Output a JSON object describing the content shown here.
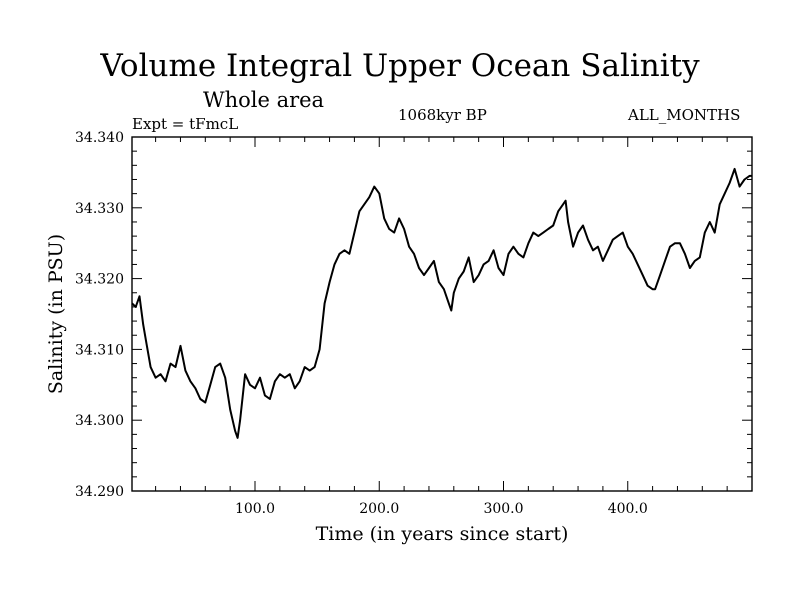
{
  "header": {
    "title": "Volume Integral Upper Ocean Salinity",
    "subtitle": "Whole area",
    "experiment": "Expt = tFmcL",
    "era": "1068kyr BP",
    "months": "ALL_MONTHS"
  },
  "chart_data": {
    "type": "line",
    "title": "Volume Integral Upper Ocean Salinity",
    "xlabel": "Time (in years since start)",
    "ylabel": "Salinity (in PSU)",
    "xlim": [
      1,
      500
    ],
    "ylim": [
      34.29,
      34.34
    ],
    "x_ticks": [
      100,
      200,
      300,
      400
    ],
    "x_tick_labels": [
      "100.0",
      "200.0",
      "300.0",
      "400.0"
    ],
    "y_ticks": [
      34.29,
      34.3,
      34.31,
      34.32,
      34.33,
      34.34
    ],
    "y_tick_labels": [
      "34.290",
      "34.300",
      "34.310",
      "34.320",
      "34.330",
      "34.340"
    ],
    "grid": false,
    "series": [
      {
        "name": "Salinity",
        "x": [
          1,
          4,
          7,
          10,
          13,
          16,
          20,
          24,
          28,
          32,
          36,
          40,
          44,
          48,
          52,
          56,
          60,
          64,
          68,
          72,
          76,
          80,
          84,
          86,
          88,
          92,
          96,
          100,
          104,
          108,
          112,
          116,
          120,
          124,
          128,
          132,
          136,
          140,
          144,
          148,
          152,
          156,
          160,
          164,
          168,
          172,
          176,
          180,
          184,
          188,
          192,
          196,
          198,
          200,
          204,
          208,
          212,
          216,
          220,
          224,
          228,
          232,
          236,
          240,
          244,
          248,
          252,
          256,
          258,
          260,
          264,
          268,
          272,
          276,
          280,
          284,
          288,
          292,
          296,
          300,
          304,
          308,
          312,
          316,
          320,
          324,
          328,
          332,
          336,
          340,
          344,
          348,
          350,
          352,
          356,
          360,
          364,
          368,
          372,
          376,
          380,
          384,
          388,
          392,
          396,
          400,
          404,
          408,
          412,
          416,
          420,
          422,
          426,
          430,
          434,
          438,
          442,
          446,
          450,
          454,
          458,
          462,
          466,
          470,
          474,
          478,
          482,
          486,
          490,
          494,
          498,
          500
        ],
        "values": [
          34.3165,
          34.316,
          34.3175,
          34.3135,
          34.3105,
          34.3075,
          34.306,
          34.3065,
          34.3055,
          34.308,
          34.3075,
          34.3105,
          34.307,
          34.3055,
          34.3045,
          34.303,
          34.3025,
          34.305,
          34.3075,
          34.308,
          34.306,
          34.3015,
          34.2985,
          34.2975,
          34.3,
          34.3065,
          34.305,
          34.3045,
          34.306,
          34.3035,
          34.303,
          34.3055,
          34.3065,
          34.306,
          34.3065,
          34.3045,
          34.3055,
          34.3075,
          34.307,
          34.3075,
          34.31,
          34.3165,
          34.3195,
          34.322,
          34.3235,
          34.324,
          34.3235,
          34.3265,
          34.3295,
          34.3305,
          34.3315,
          34.333,
          34.3325,
          34.332,
          34.3285,
          34.327,
          34.3265,
          34.3285,
          34.327,
          34.3245,
          34.3235,
          34.3215,
          34.3205,
          34.3215,
          34.3225,
          34.3195,
          34.3185,
          34.3165,
          34.3155,
          34.318,
          34.32,
          34.321,
          34.323,
          34.3195,
          34.3205,
          34.322,
          34.3225,
          34.324,
          34.3215,
          34.3205,
          34.3235,
          34.3245,
          34.3235,
          34.323,
          34.325,
          34.3265,
          34.326,
          34.3265,
          34.327,
          34.3275,
          34.3295,
          34.3305,
          34.331,
          34.328,
          34.3245,
          34.3265,
          34.3275,
          34.3255,
          34.324,
          34.3245,
          34.3225,
          34.324,
          34.3255,
          34.326,
          34.3265,
          34.3245,
          34.3235,
          34.322,
          34.3205,
          34.319,
          34.3185,
          34.3185,
          34.3205,
          34.3225,
          34.3245,
          34.325,
          34.325,
          34.3235,
          34.3215,
          34.3225,
          34.323,
          34.3265,
          34.328,
          34.3265,
          34.3305,
          34.332,
          34.3335,
          34.3355,
          34.333,
          34.334,
          34.3345,
          34.3345
        ]
      }
    ]
  }
}
